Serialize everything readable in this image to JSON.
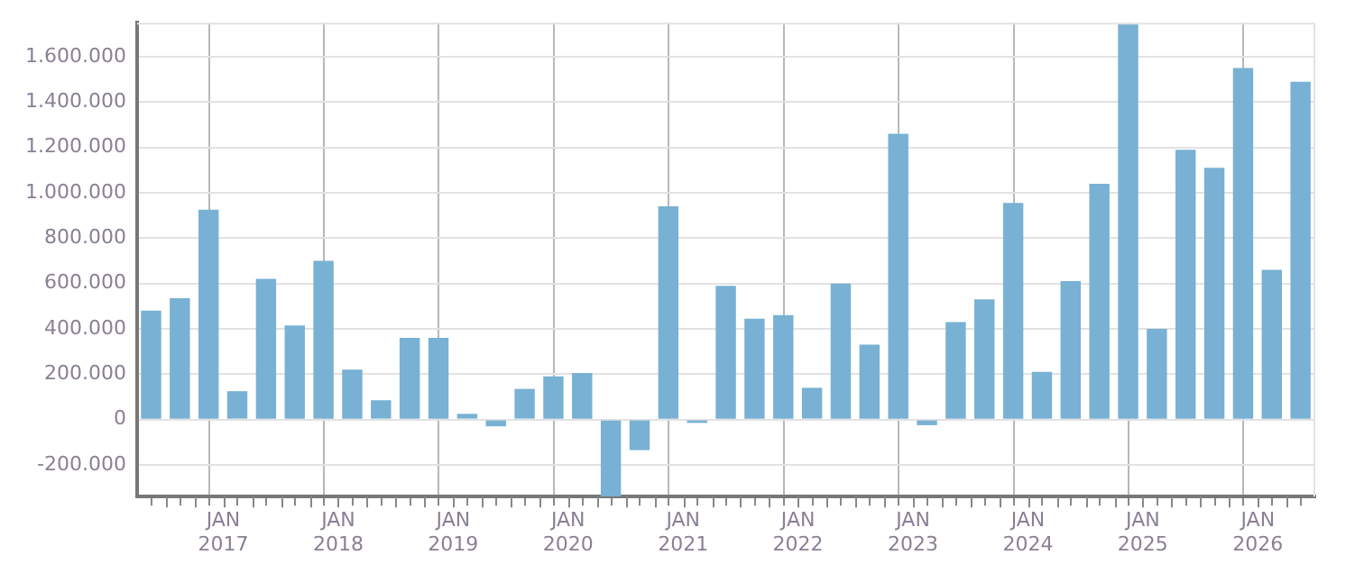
{
  "chart_data": {
    "type": "bar",
    "color": "#78b1d3",
    "legend": false,
    "grid": true,
    "x": [
      "2016-05-15",
      "2016-08-15",
      "2016-11-15",
      "2017-02-15",
      "2017-05-15",
      "2017-08-15",
      "2017-11-15",
      "2018-02-15",
      "2018-05-15",
      "2018-08-15",
      "2018-11-15",
      "2019-02-15",
      "2019-05-15",
      "2019-08-15",
      "2019-11-15",
      "2020-02-15",
      "2020-05-15",
      "2020-08-15",
      "2020-11-15",
      "2021-02-15",
      "2021-05-15",
      "2021-08-15",
      "2021-11-15",
      "2022-02-15",
      "2022-05-15",
      "2022-08-15",
      "2022-11-15",
      "2023-02-15",
      "2023-05-15",
      "2023-08-15",
      "2023-11-15",
      "2024-02-15",
      "2024-05-15",
      "2024-08-15",
      "2024-11-15",
      "2025-02-15",
      "2025-05-15",
      "2025-08-15",
      "2025-11-15",
      "2026-02-15",
      "2026-05-15"
    ],
    "values": [
      480000,
      535000,
      925000,
      125000,
      620000,
      415000,
      700000,
      220000,
      85000,
      360000,
      360000,
      25000,
      -30000,
      135000,
      190000,
      205000,
      -340000,
      -135000,
      940000,
      -15000,
      590000,
      445000,
      460000,
      140000,
      600000,
      330000,
      1260000,
      -25000,
      430000,
      530000,
      955000,
      210000,
      610000,
      1040000,
      1745000,
      400000,
      1190000,
      1110000,
      1550000,
      660000,
      1490000
    ],
    "xlim": [
      "2016-04",
      "2026-07"
    ],
    "xticks": [
      {
        "value": "2016-07",
        "label": null
      },
      {
        "value": "2016-10",
        "label": null
      },
      {
        "value": "2017-01",
        "label": "JAN 2017"
      },
      {
        "value": "2017-04",
        "label": null
      },
      {
        "value": "2017-07",
        "label": null
      },
      {
        "value": "2017-10",
        "label": null
      },
      {
        "value": "2018-01",
        "label": "JAN 2018"
      },
      {
        "value": "2018-04",
        "label": null
      },
      {
        "value": "2018-07",
        "label": null
      },
      {
        "value": "2018-10",
        "label": null
      },
      {
        "value": "2019-01",
        "label": "JAN 2019"
      },
      {
        "value": "2019-04",
        "label": null
      },
      {
        "value": "2019-07",
        "label": null
      },
      {
        "value": "2019-10",
        "label": null
      },
      {
        "value": "2020-01",
        "label": "JAN 2020"
      },
      {
        "value": "2020-04",
        "label": null
      },
      {
        "value": "2020-07",
        "label": null
      },
      {
        "value": "2020-10",
        "label": null
      },
      {
        "value": "2021-01",
        "label": "JAN 2021"
      },
      {
        "value": "2021-04",
        "label": null
      },
      {
        "value": "2021-07",
        "label": null
      },
      {
        "value": "2021-10",
        "label": null
      },
      {
        "value": "2022-01",
        "label": "JAN 2022"
      },
      {
        "value": "2022-04",
        "label": null
      },
      {
        "value": "2022-07",
        "label": null
      },
      {
        "value": "2022-10",
        "label": null
      },
      {
        "value": "2023-01",
        "label": "JAN 2023"
      },
      {
        "value": "2023-04",
        "label": null
      },
      {
        "value": "2023-07",
        "label": null
      },
      {
        "value": "2023-10",
        "label": null
      },
      {
        "value": "2024-01",
        "label": "JAN 2024"
      },
      {
        "value": "2024-04",
        "label": null
      },
      {
        "value": "2024-07",
        "label": null
      },
      {
        "value": "2024-10",
        "label": null
      },
      {
        "value": "2025-01",
        "label": "JAN 2025"
      },
      {
        "value": "2025-04",
        "label": null
      },
      {
        "value": "2025-07",
        "label": null
      },
      {
        "value": "2025-10",
        "label": null
      },
      {
        "value": "2026-01",
        "label": "JAN 2026"
      },
      {
        "value": "2026-04",
        "label": null
      }
    ],
    "ylim": [
      -340000,
      1750000
    ],
    "yticks": [
      {
        "value": -200000,
        "label": "-200.000"
      },
      {
        "value": 0,
        "label": "0"
      },
      {
        "value": 200000,
        "label": "200.000"
      },
      {
        "value": 400000,
        "label": "400.000"
      },
      {
        "value": 600000,
        "label": "600.000"
      },
      {
        "value": 800000,
        "label": "800.000"
      },
      {
        "value": 1000000,
        "label": "1.000.000"
      },
      {
        "value": 1200000,
        "label": "1.200.000"
      },
      {
        "value": 1400000,
        "label": "1.400.000"
      },
      {
        "value": 1600000,
        "label": "1.600.000"
      }
    ]
  }
}
